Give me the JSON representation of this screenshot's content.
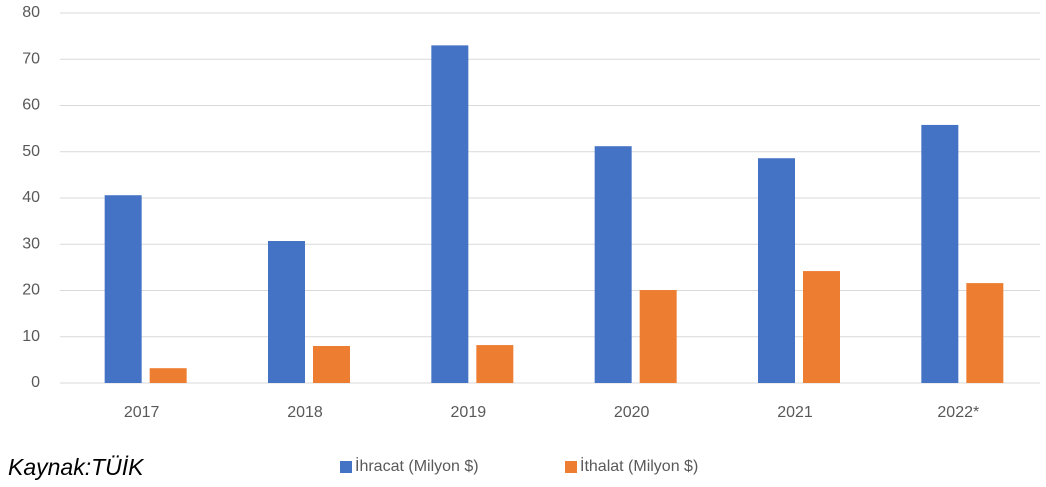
{
  "chart_data": {
    "type": "bar",
    "categories": [
      "2017",
      "2018",
      "2019",
      "2020",
      "2021",
      "2022*"
    ],
    "series": [
      {
        "name": "İhracat (Milyon $)",
        "color": "#4472c4",
        "values": [
          40.6,
          30.7,
          73,
          51.2,
          48.6,
          55.8
        ]
      },
      {
        "name": "İthalat (Milyon $)",
        "color": "#ed7d31",
        "values": [
          3.2,
          8,
          8.2,
          20.1,
          24.2,
          21.6
        ]
      }
    ],
    "ylim": [
      0,
      80
    ],
    "yticks": [
      0,
      10,
      20,
      30,
      40,
      50,
      60,
      70,
      80
    ],
    "grid": true,
    "legend": "bottom",
    "source": "Kaynak:TÜİK"
  }
}
